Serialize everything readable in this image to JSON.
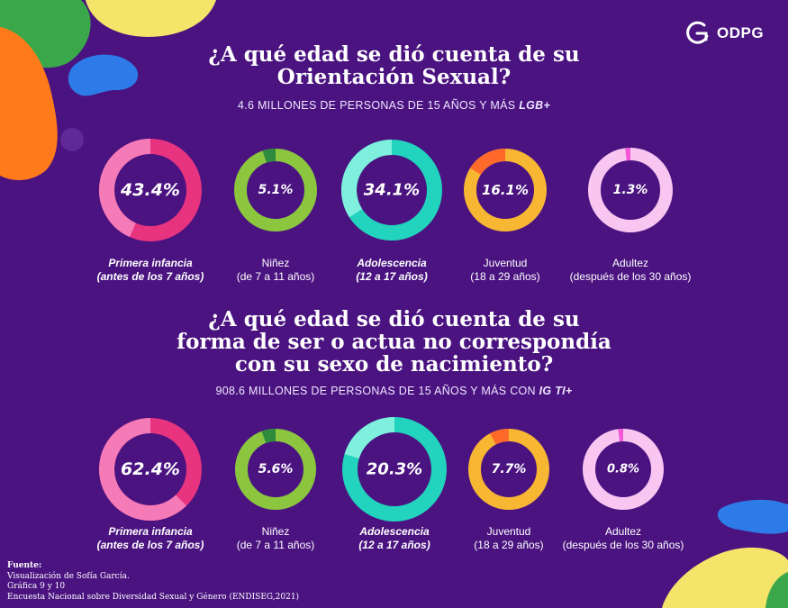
{
  "header": {
    "logo_text": "ODPG"
  },
  "colors": {
    "background": "#4a1380",
    "pink": "#e8337f",
    "pink_light": "#f57ab8",
    "green": "#8cc63f",
    "green_dark": "#2e8b3e",
    "teal": "#22d3bd",
    "teal_light": "#7ff0de",
    "orange": "#ff6a2b",
    "yellow": "#f7b733",
    "lilac": "#f9c6f2",
    "magenta": "#f255d6"
  },
  "chart_data": [
    {
      "type": "donut",
      "title": [
        "¿A qué edad se dió cuenta de su",
        "Orientación Sexual?"
      ],
      "subtitle_text": "4.6 MILLONES DE PERSONAS DE 15 AÑOS Y MÁS",
      "subtitle_bold": "LGB+",
      "items": [
        {
          "value": 43.4,
          "label": "43.4%",
          "category": [
            "Primera infancia",
            "(antes de los 7 años)"
          ],
          "emphasis": true
        },
        {
          "value": 5.1,
          "label": "5.1%",
          "category": [
            "Niñez",
            "(de 7 a 11 años)"
          ],
          "emphasis": false
        },
        {
          "value": 34.1,
          "label": "34.1%",
          "category": [
            "Adolescencia",
            "(12 a 17 años)"
          ],
          "emphasis": true
        },
        {
          "value": 16.1,
          "label": "16.1%",
          "category": [
            "Juventud",
            "(18 a 29 años)"
          ],
          "emphasis": false
        },
        {
          "value": 1.3,
          "label": "1.3%",
          "category": [
            "Adultez",
            "(después de los 30 años)"
          ],
          "emphasis": false
        }
      ]
    },
    {
      "type": "donut",
      "title": [
        "¿A qué edad se dió cuenta de su",
        "forma de ser o actua no correspondía",
        "con su sexo de nacimiento?"
      ],
      "subtitle_text": "908.6 MILLONES DE PERSONAS DE 15 AÑOS Y MÁS CON",
      "subtitle_bold": "IG TI+",
      "items": [
        {
          "value": 62.4,
          "label": "62.4%",
          "category": [
            "Primera infancia",
            "(antes de los 7 años)"
          ],
          "emphasis": true
        },
        {
          "value": 5.6,
          "label": "5.6%",
          "category": [
            "Niñez",
            "(de 7 a 11 años)"
          ],
          "emphasis": false
        },
        {
          "value": 20.3,
          "label": "20.3%",
          "category": [
            "Adolescencia",
            "(12 a 17 años)"
          ],
          "emphasis": true
        },
        {
          "value": 7.7,
          "label": "7.7%",
          "category": [
            "Juventud",
            "(18 a 29 años)"
          ],
          "emphasis": false
        },
        {
          "value": 0.8,
          "label": "0.8%",
          "category": [
            "Adultez",
            "(después de los 30 años)"
          ],
          "emphasis": false
        }
      ]
    }
  ],
  "source": {
    "heading": "Fuente:",
    "lines": [
      "Visualización de Sofía García.",
      "Gráfica 9 y 10",
      "Encuesta Nacional sobre Diversidad Sexual y Género (ENDISEG,2021)"
    ]
  }
}
